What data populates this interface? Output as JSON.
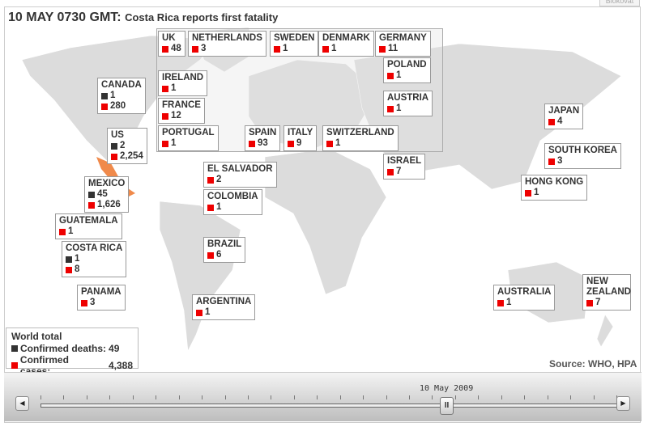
{
  "top_button": "Blokovat",
  "header": {
    "time": "10 MAY 0730 GMT:",
    "headline": "Costa Rica reports first fatality"
  },
  "countries": [
    {
      "name": "UK",
      "cases": "48"
    },
    {
      "name": "NETHERLANDS",
      "cases": "3"
    },
    {
      "name": "SWEDEN",
      "cases": "1"
    },
    {
      "name": "DENMARK",
      "cases": "1"
    },
    {
      "name": "GERMANY",
      "cases": "11"
    },
    {
      "name": "IRELAND",
      "cases": "1"
    },
    {
      "name": "POLAND",
      "cases": "1"
    },
    {
      "name": "FRANCE",
      "cases": "12"
    },
    {
      "name": "AUSTRIA",
      "cases": "1"
    },
    {
      "name": "PORTUGAL",
      "cases": "1"
    },
    {
      "name": "SPAIN",
      "cases": "93"
    },
    {
      "name": "ITALY",
      "cases": "9"
    },
    {
      "name": "SWITZERLAND",
      "cases": "1"
    },
    {
      "name": "CANADA",
      "deaths": "1",
      "cases": "280"
    },
    {
      "name": "US",
      "deaths": "2",
      "cases": "2,254"
    },
    {
      "name": "MEXICO",
      "deaths": "45",
      "cases": "1,626"
    },
    {
      "name": "GUATEMALA",
      "cases": "1"
    },
    {
      "name": "COSTA RICA",
      "deaths": "1",
      "cases": "8"
    },
    {
      "name": "PANAMA",
      "cases": "3"
    },
    {
      "name": "EL SALVADOR",
      "cases": "2"
    },
    {
      "name": "COLOMBIA",
      "cases": "1"
    },
    {
      "name": "BRAZIL",
      "cases": "6"
    },
    {
      "name": "ARGENTINA",
      "cases": "1"
    },
    {
      "name": "ISRAEL",
      "cases": "7"
    },
    {
      "name": "JAPAN",
      "cases": "4"
    },
    {
      "name": "SOUTH KOREA",
      "cases": "3"
    },
    {
      "name": "HONG KONG",
      "cases": "1"
    },
    {
      "name": "AUSTRALIA",
      "cases": "1"
    },
    {
      "name": "NEW ZEALAND",
      "name2": "ZEALAND",
      "cases": "7"
    }
  ],
  "world_total": {
    "title": "World total",
    "deaths_label": "Confirmed deaths:",
    "deaths": "49",
    "cases_label": "Confirmed cases:",
    "cases": "4,388"
  },
  "source": "Source: WHO, HPA",
  "timeline": {
    "date": "10 May 2009",
    "prev": "◀",
    "next": "▶",
    "pause": "II"
  },
  "colors": {
    "death": "#333333",
    "case": "#ee0000",
    "highlight": "#f08a4b",
    "land": "#dcdcdc"
  }
}
